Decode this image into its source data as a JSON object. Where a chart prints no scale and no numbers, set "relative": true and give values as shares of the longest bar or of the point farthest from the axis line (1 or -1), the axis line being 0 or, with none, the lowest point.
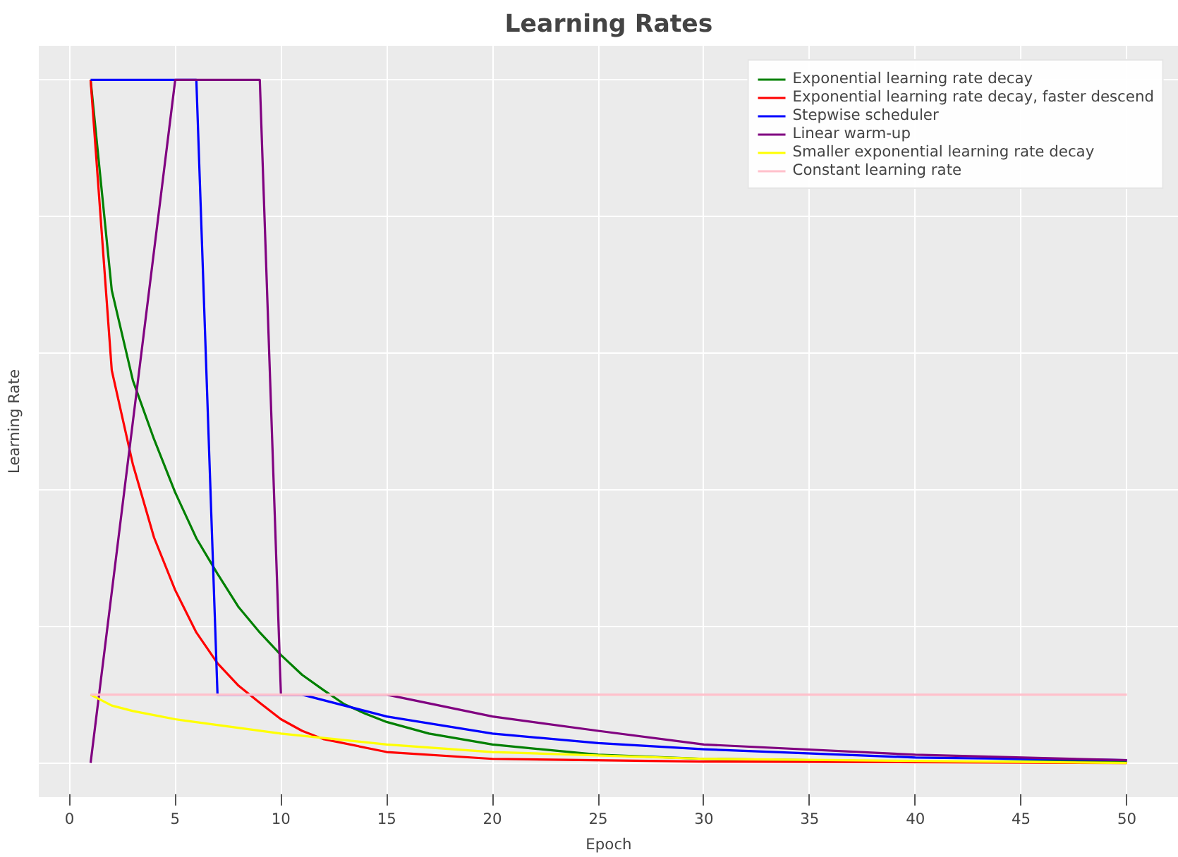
{
  "chart_data": {
    "type": "line",
    "title": "Learning Rates",
    "xlabel": "Epoch",
    "ylabel": "Learning Rate",
    "relative": true,
    "xlim": [
      -1.45,
      52.45
    ],
    "xticks": [
      0,
      5,
      10,
      15,
      20,
      25,
      30,
      35,
      40,
      45,
      50
    ],
    "grid": true,
    "legend": "top right",
    "line_style": "solid",
    "marker": "none",
    "series": [
      {
        "name": "Exponential learning rate decay",
        "color": "#008000",
        "x": [
          1,
          2,
          3,
          4,
          5,
          6,
          7,
          8,
          9,
          10,
          11,
          12,
          13,
          14,
          15,
          17,
          20,
          25,
          30,
          40,
          50
        ],
        "values": [
          1,
          0.692,
          0.56,
          0.474,
          0.396,
          0.329,
          0.277,
          0.228,
          0.191,
          0.158,
          0.129,
          0.107,
          0.086,
          0.072,
          0.06,
          0.043,
          0.027,
          0.012,
          0.006,
          0.002,
          0.002
        ]
      },
      {
        "name": "Exponential learning rate decay, faster descend",
        "color": "#ff0000",
        "x": [
          1,
          2,
          3,
          4,
          5,
          6,
          7,
          8,
          9,
          10,
          11,
          12,
          15,
          20,
          30,
          50
        ],
        "values": [
          1,
          0.575,
          0.437,
          0.33,
          0.253,
          0.191,
          0.146,
          0.113,
          0.088,
          0.064,
          0.047,
          0.035,
          0.016,
          0.006,
          0.002,
          0
        ]
      },
      {
        "name": "Stepwise scheduler",
        "color": "#0000ff",
        "x": [
          1,
          6,
          7,
          11,
          15,
          20,
          25,
          30,
          40,
          50
        ],
        "values": [
          1,
          1,
          0.1,
          0.1,
          0.068,
          0.043,
          0.029,
          0.02,
          0.008,
          0.004
        ]
      },
      {
        "name": "Linear warm-up",
        "color": "#800080",
        "x": [
          1,
          5,
          9,
          10,
          15,
          20,
          25,
          30,
          40,
          50
        ],
        "values": [
          0,
          1,
          1,
          0.1,
          0.1,
          0.068,
          0.047,
          0.027,
          0.012,
          0.004
        ]
      },
      {
        "name": "Smaller exponential learning rate decay",
        "color": "#ffff00",
        "x": [
          1,
          2,
          3,
          5,
          10,
          15,
          20,
          30,
          50
        ],
        "values": [
          0.1,
          0.084,
          0.076,
          0.064,
          0.043,
          0.027,
          0.016,
          0.006,
          0
        ]
      },
      {
        "name": "Constant learning rate",
        "color": "#ffc0cb",
        "x": [
          1,
          50
        ],
        "values": [
          0.1,
          0.1
        ]
      }
    ]
  }
}
